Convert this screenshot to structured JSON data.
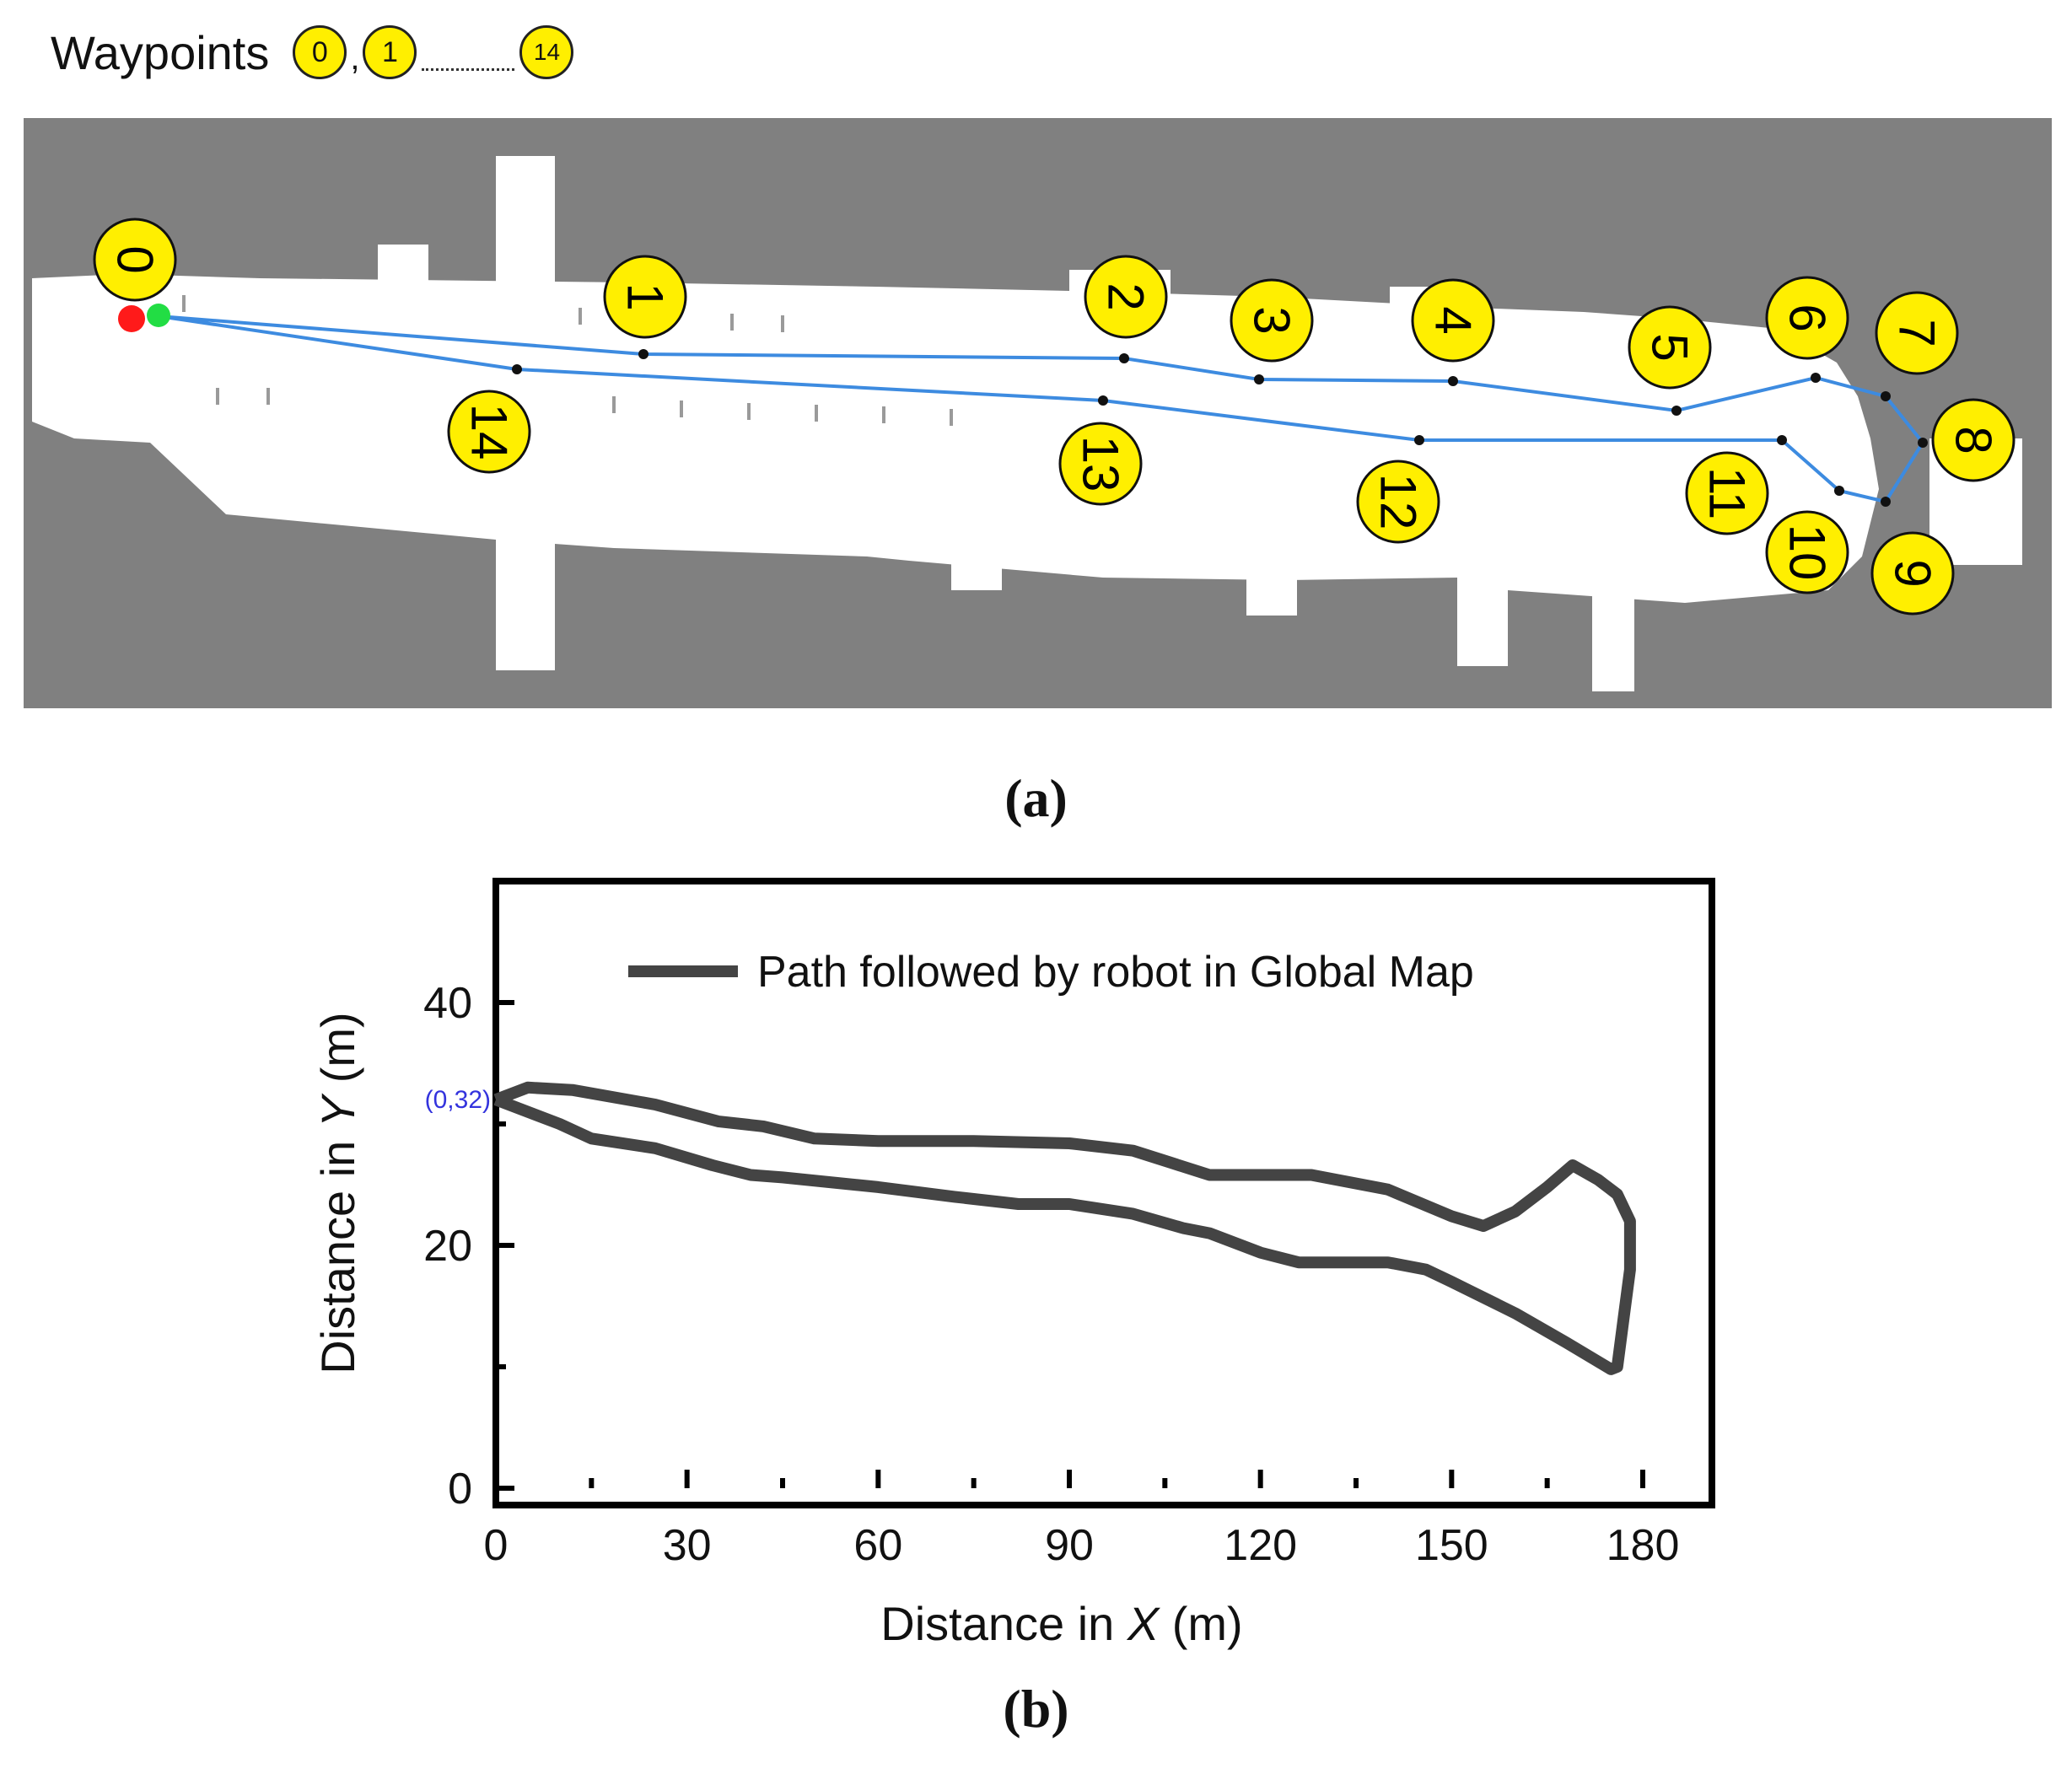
{
  "legend": {
    "label": "Waypoints",
    "first": "0",
    "second": "1",
    "separator": ",",
    "last": "14"
  },
  "map": {
    "waypoints": [
      "0",
      "1",
      "2",
      "3",
      "4",
      "5",
      "6",
      "7",
      "8",
      "9",
      "10",
      "11",
      "12",
      "13",
      "14"
    ],
    "colors": {
      "background": "#808080",
      "free_space": "#ffffff",
      "path": "#3d8be0",
      "badge": "#ffef00",
      "start_red": "#ff1a1a",
      "start_green": "#22dd44"
    }
  },
  "panel_labels": {
    "a": "(a)",
    "b": "(b)"
  },
  "chart_data": {
    "type": "line",
    "title": "",
    "xlabel_prefix": "Distance in ",
    "xlabel_var": "X",
    "xlabel_suffix": " (m)",
    "ylabel_prefix": "Distance in ",
    "ylabel_var": "Y",
    "ylabel_suffix": " (m)",
    "xlim": [
      0,
      190
    ],
    "ylim": [
      0,
      50
    ],
    "x_ticks": [
      0,
      30,
      60,
      90,
      120,
      150,
      180
    ],
    "y_ticks": [
      0,
      20,
      40
    ],
    "start_annotation": "(0,32)",
    "series": [
      {
        "name": "Path followed by robot in Global Map",
        "color": "#444444",
        "x": [
          0,
          5,
          12,
          25,
          35,
          42,
          50,
          60,
          75,
          90,
          100,
          106,
          112,
          128,
          132,
          140,
          150,
          155,
          160,
          165,
          169,
          173,
          176,
          178,
          178,
          177,
          176,
          175,
          168,
          160,
          150,
          146,
          140,
          132,
          126,
          120,
          112,
          108,
          100,
          90,
          82,
          72,
          60,
          45,
          40,
          34,
          25,
          15,
          10,
          0
        ],
        "y": [
          32,
          33,
          32.8,
          31.6,
          30.2,
          29.8,
          28.8,
          28.6,
          28.6,
          28.4,
          27.8,
          26.8,
          25.8,
          25.8,
          25.4,
          24.6,
          22.4,
          21.6,
          22.8,
          24.8,
          26.6,
          25.4,
          24.2,
          22,
          18,
          14,
          10,
          9.8,
          12,
          14.4,
          17,
          18,
          18.6,
          18.6,
          18.6,
          19.4,
          21,
          21.4,
          22.6,
          23.4,
          23.4,
          24,
          24.8,
          25.6,
          25.8,
          26.6,
          28,
          28.8,
          30,
          32
        ]
      }
    ],
    "legend_position": "top"
  }
}
